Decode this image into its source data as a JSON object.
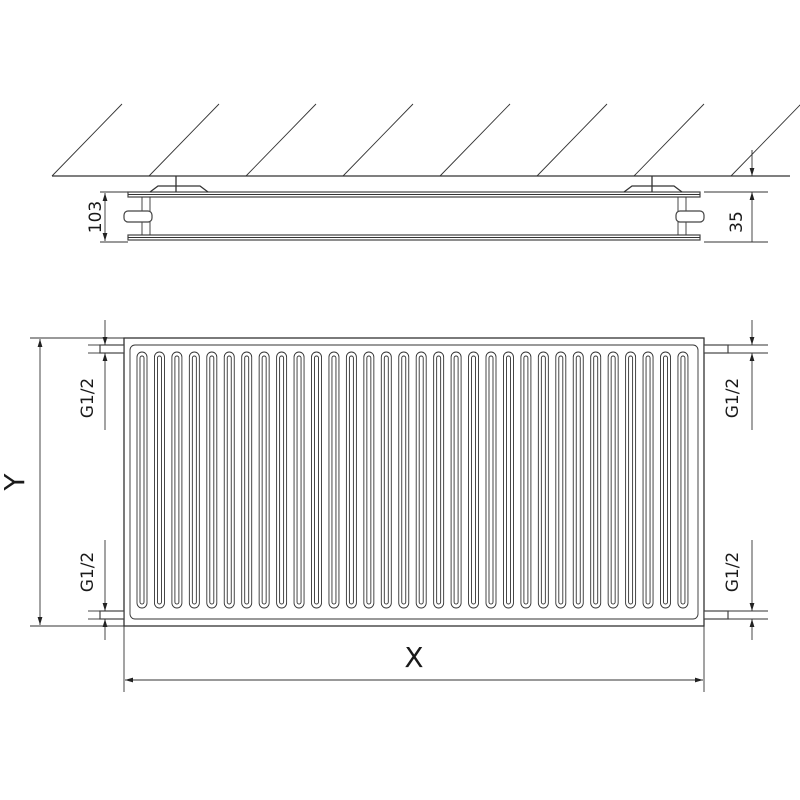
{
  "labels": {
    "depth": "103",
    "wall_gap": "35",
    "connection_top_left": "G1/2",
    "connection_bottom_left": "G1/2",
    "connection_top_right": "G1/2",
    "connection_bottom_right": "G1/2",
    "height": "Y",
    "width": "X"
  },
  "colors": {
    "line": "#333333",
    "background": "#ffffff"
  }
}
